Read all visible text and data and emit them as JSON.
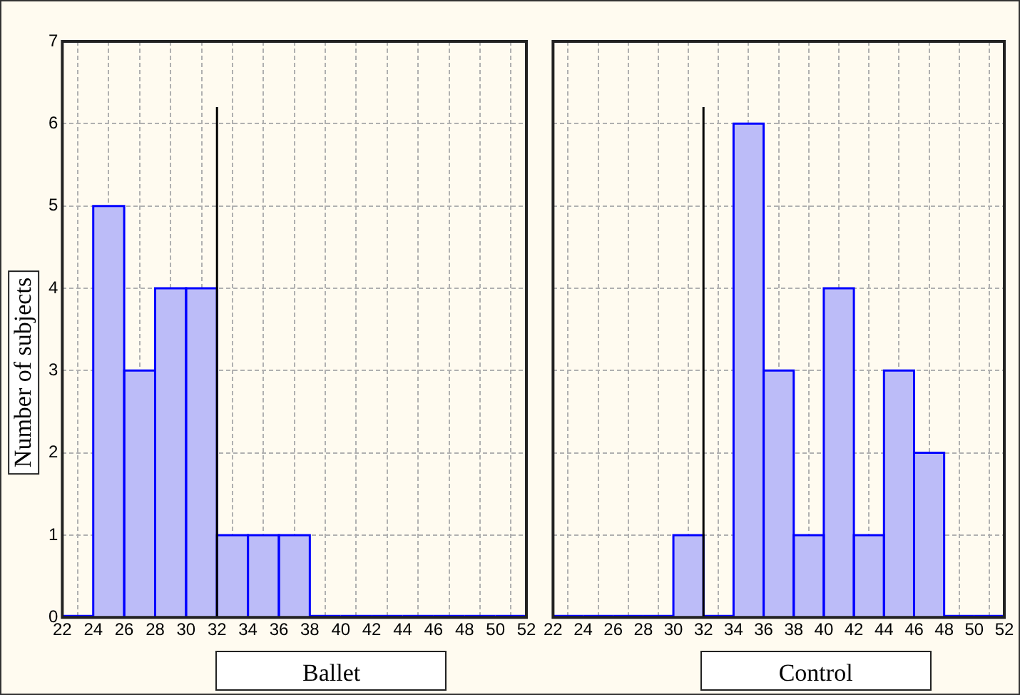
{
  "chart_data": [
    {
      "type": "histogram",
      "ylabel": "Number of subjects",
      "xlabel": "Ballet",
      "bins": [
        22,
        24,
        26,
        28,
        30,
        32,
        34,
        36,
        38,
        40,
        42,
        44,
        46,
        48,
        50,
        52
      ],
      "values": [
        0,
        5,
        3,
        4,
        4,
        1,
        1,
        1,
        0,
        0,
        0,
        0,
        0,
        0,
        0
      ],
      "color": "#bcbcf8",
      "xlim": [
        22,
        52
      ],
      "xticks": [
        22,
        24,
        26,
        28,
        30,
        32,
        34,
        36,
        38,
        40,
        42,
        44,
        46,
        48,
        50,
        52
      ],
      "ylim": [
        0,
        7
      ],
      "yticks": [
        0,
        1,
        2,
        3,
        4,
        5,
        6,
        7
      ],
      "grid": true,
      "ref_lines": [
        {
          "axis": "x",
          "value": 32,
          "color": "#000000"
        }
      ]
    },
    {
      "type": "histogram",
      "xlabel": "Control",
      "bins": [
        22,
        24,
        26,
        28,
        30,
        32,
        34,
        36,
        38,
        40,
        42,
        44,
        46,
        48,
        50,
        52
      ],
      "values": [
        0,
        0,
        0,
        0,
        1,
        0,
        6,
        3,
        1,
        4,
        1,
        3,
        2,
        0,
        0
      ],
      "color": "#bcbcf8",
      "xlim": [
        22,
        52
      ],
      "xticks": [
        22,
        24,
        26,
        28,
        30,
        32,
        34,
        36,
        38,
        40,
        42,
        44,
        46,
        48,
        50,
        52
      ],
      "ylim": [
        0,
        7
      ],
      "yticks": [
        0,
        1,
        2,
        3,
        4,
        5,
        6,
        7
      ],
      "grid": true,
      "tick_labels": "x",
      "ref_lines": [
        {
          "axis": "x",
          "value": 32,
          "color": "#000000"
        }
      ]
    }
  ]
}
